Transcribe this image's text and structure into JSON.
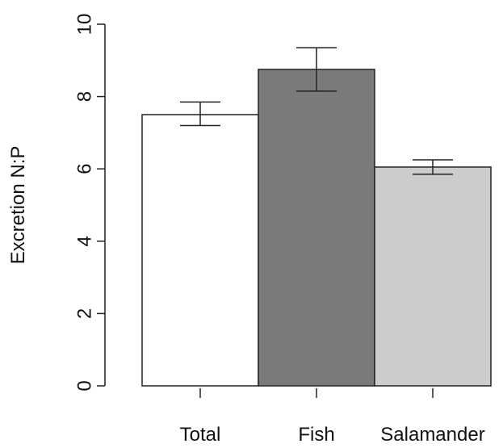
{
  "chart_data": {
    "type": "bar",
    "title": "",
    "xlabel": "",
    "ylabel": "Excretion N:P",
    "categories": [
      "Total",
      "Fish",
      "Salamander"
    ],
    "values": [
      7.5,
      8.75,
      6.05
    ],
    "errors": [
      {
        "low": 7.2,
        "high": 7.85
      },
      {
        "low": 8.15,
        "high": 9.35
      },
      {
        "low": 5.85,
        "high": 6.25
      }
    ],
    "colors": [
      "#ffffff",
      "#7a7a7a",
      "#cccccc"
    ],
    "bar_outline": "#222222",
    "ylim": [
      0,
      10
    ],
    "yticks": [
      "0",
      "2",
      "4",
      "6",
      "8",
      "10"
    ],
    "grid": false,
    "legend": "none"
  }
}
